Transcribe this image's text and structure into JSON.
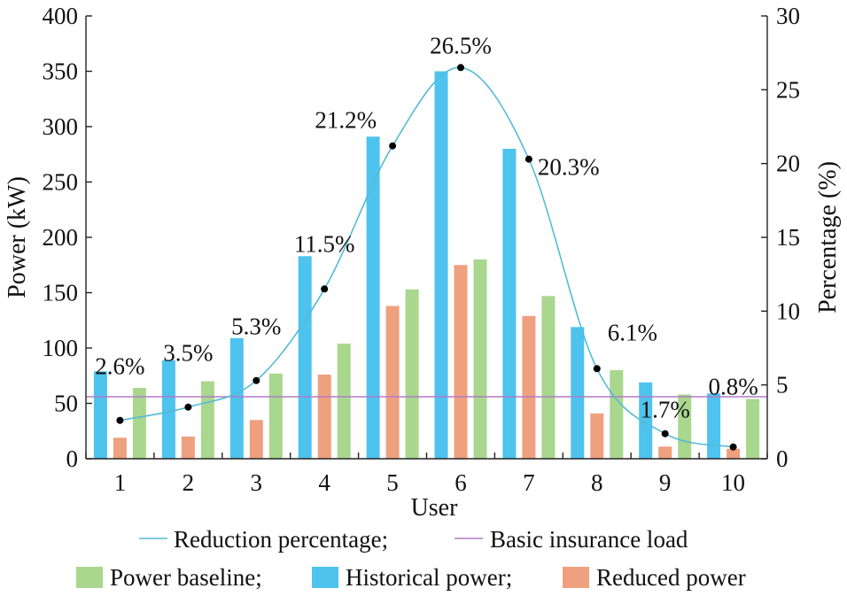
{
  "chart_data": {
    "type": "bar",
    "categories": [
      "1",
      "2",
      "3",
      "4",
      "5",
      "6",
      "7",
      "8",
      "9",
      "10"
    ],
    "series": [
      {
        "name": "Historical power",
        "axis": "left",
        "color": "#4DC3EE",
        "values": [
          79,
          89,
          109,
          183,
          291,
          350,
          280,
          119,
          69,
          59
        ]
      },
      {
        "name": "Reduced power",
        "axis": "left",
        "color": "#EFA07E",
        "values": [
          19,
          20,
          35,
          76,
          138,
          175,
          129,
          41,
          11,
          9
        ]
      },
      {
        "name": "Power baseline",
        "axis": "left",
        "color": "#A9D78E",
        "values": [
          64,
          70,
          77,
          104,
          153,
          180,
          147,
          80,
          58,
          54
        ]
      },
      {
        "name": "Reduction percentage",
        "axis": "right",
        "type": "line",
        "color": "#55BBD6",
        "values": [
          2.6,
          3.5,
          5.3,
          11.5,
          21.2,
          26.5,
          20.3,
          6.1,
          1.7,
          0.8
        ]
      }
    ],
    "point_labels": [
      "2.6%",
      "3.5%",
      "5.3%",
      "11.5%",
      "21.2%",
      "26.5%",
      "20.3%",
      "6.1%",
      "1.7%",
      "0.8%"
    ],
    "basic_insurance_load": {
      "name": "Basic insurance load",
      "value": 56,
      "color": "#B27BC8"
    },
    "xlabel": "User",
    "ylabel": "Power (kW)",
    "y2label": "Percentage (%)",
    "ylim": [
      0,
      400
    ],
    "yticks": [
      "0",
      "50",
      "100",
      "150",
      "200",
      "250",
      "300",
      "350",
      "400"
    ],
    "y2lim": [
      0,
      30
    ],
    "y2ticks": [
      "0",
      "5",
      "10",
      "15",
      "20",
      "25",
      "30"
    ],
    "grid": false,
    "legend": {
      "placement": "bottom",
      "row1": [
        {
          "label": "Reduction percentage;",
          "kind": "line",
          "color": "#55BBD6"
        },
        {
          "label": "Basic insurance load",
          "kind": "line",
          "color": "#B27BC8"
        }
      ],
      "row2": [
        {
          "label": "Power baseline;",
          "kind": "box",
          "color": "#A9D78E"
        },
        {
          "label": "Historical power;",
          "kind": "box",
          "color": "#4DC3EE"
        },
        {
          "label": "Reduced power",
          "kind": "box",
          "color": "#EFA07E"
        }
      ]
    }
  }
}
